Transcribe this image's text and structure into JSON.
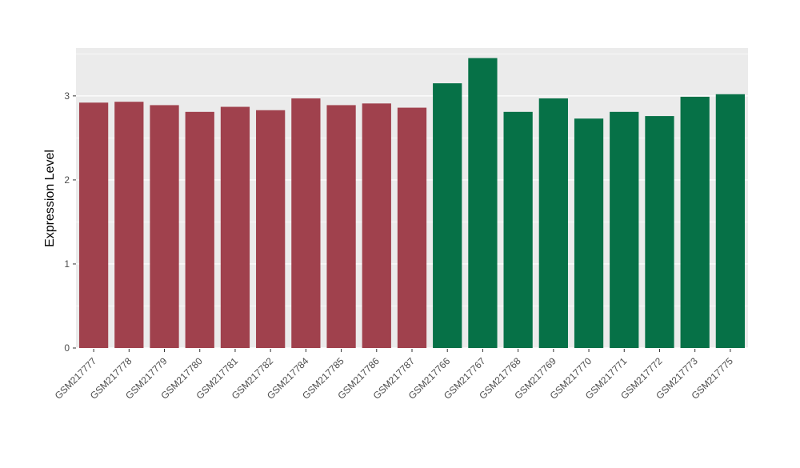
{
  "figure": {
    "background": "#FFFFFF",
    "panel_background": "#EBEBEB",
    "grid_major_color": "#FFFFFF",
    "grid_minor_color": "#FFFFFF",
    "axis_text_color": "#4D4D4D",
    "axis_title_color": "#000000",
    "tick_color": "#333333"
  },
  "chart_data": {
    "type": "bar",
    "title": "",
    "xlabel": "",
    "ylabel": "Expression Level",
    "ylim": [
      0,
      3.57
    ],
    "yticks": [
      0,
      1,
      2,
      3
    ],
    "yticks_minor": [
      0.5,
      1.5,
      2.5,
      3.5
    ],
    "grid": true,
    "legend_position": "none",
    "categories": [
      "GSM217777",
      "GSM217778",
      "GSM217779",
      "GSM217780",
      "GSM217781",
      "GSM217782",
      "GSM217784",
      "GSM217785",
      "GSM217786",
      "GSM217787",
      "GSM217766",
      "GSM217767",
      "GSM217768",
      "GSM217769",
      "GSM217770",
      "GSM217771",
      "GSM217772",
      "GSM217773",
      "GSM217775"
    ],
    "values": [
      2.92,
      2.93,
      2.89,
      2.81,
      2.87,
      2.83,
      2.97,
      2.89,
      2.91,
      2.86,
      3.15,
      3.45,
      2.81,
      2.97,
      2.73,
      2.81,
      2.76,
      2.99,
      3.02
    ],
    "groups": [
      "red",
      "red",
      "red",
      "red",
      "red",
      "red",
      "red",
      "red",
      "red",
      "red",
      "green",
      "green",
      "green",
      "green",
      "green",
      "green",
      "green",
      "green",
      "green"
    ],
    "group_colors": {
      "red": "#A0414D",
      "green": "#067147"
    }
  }
}
